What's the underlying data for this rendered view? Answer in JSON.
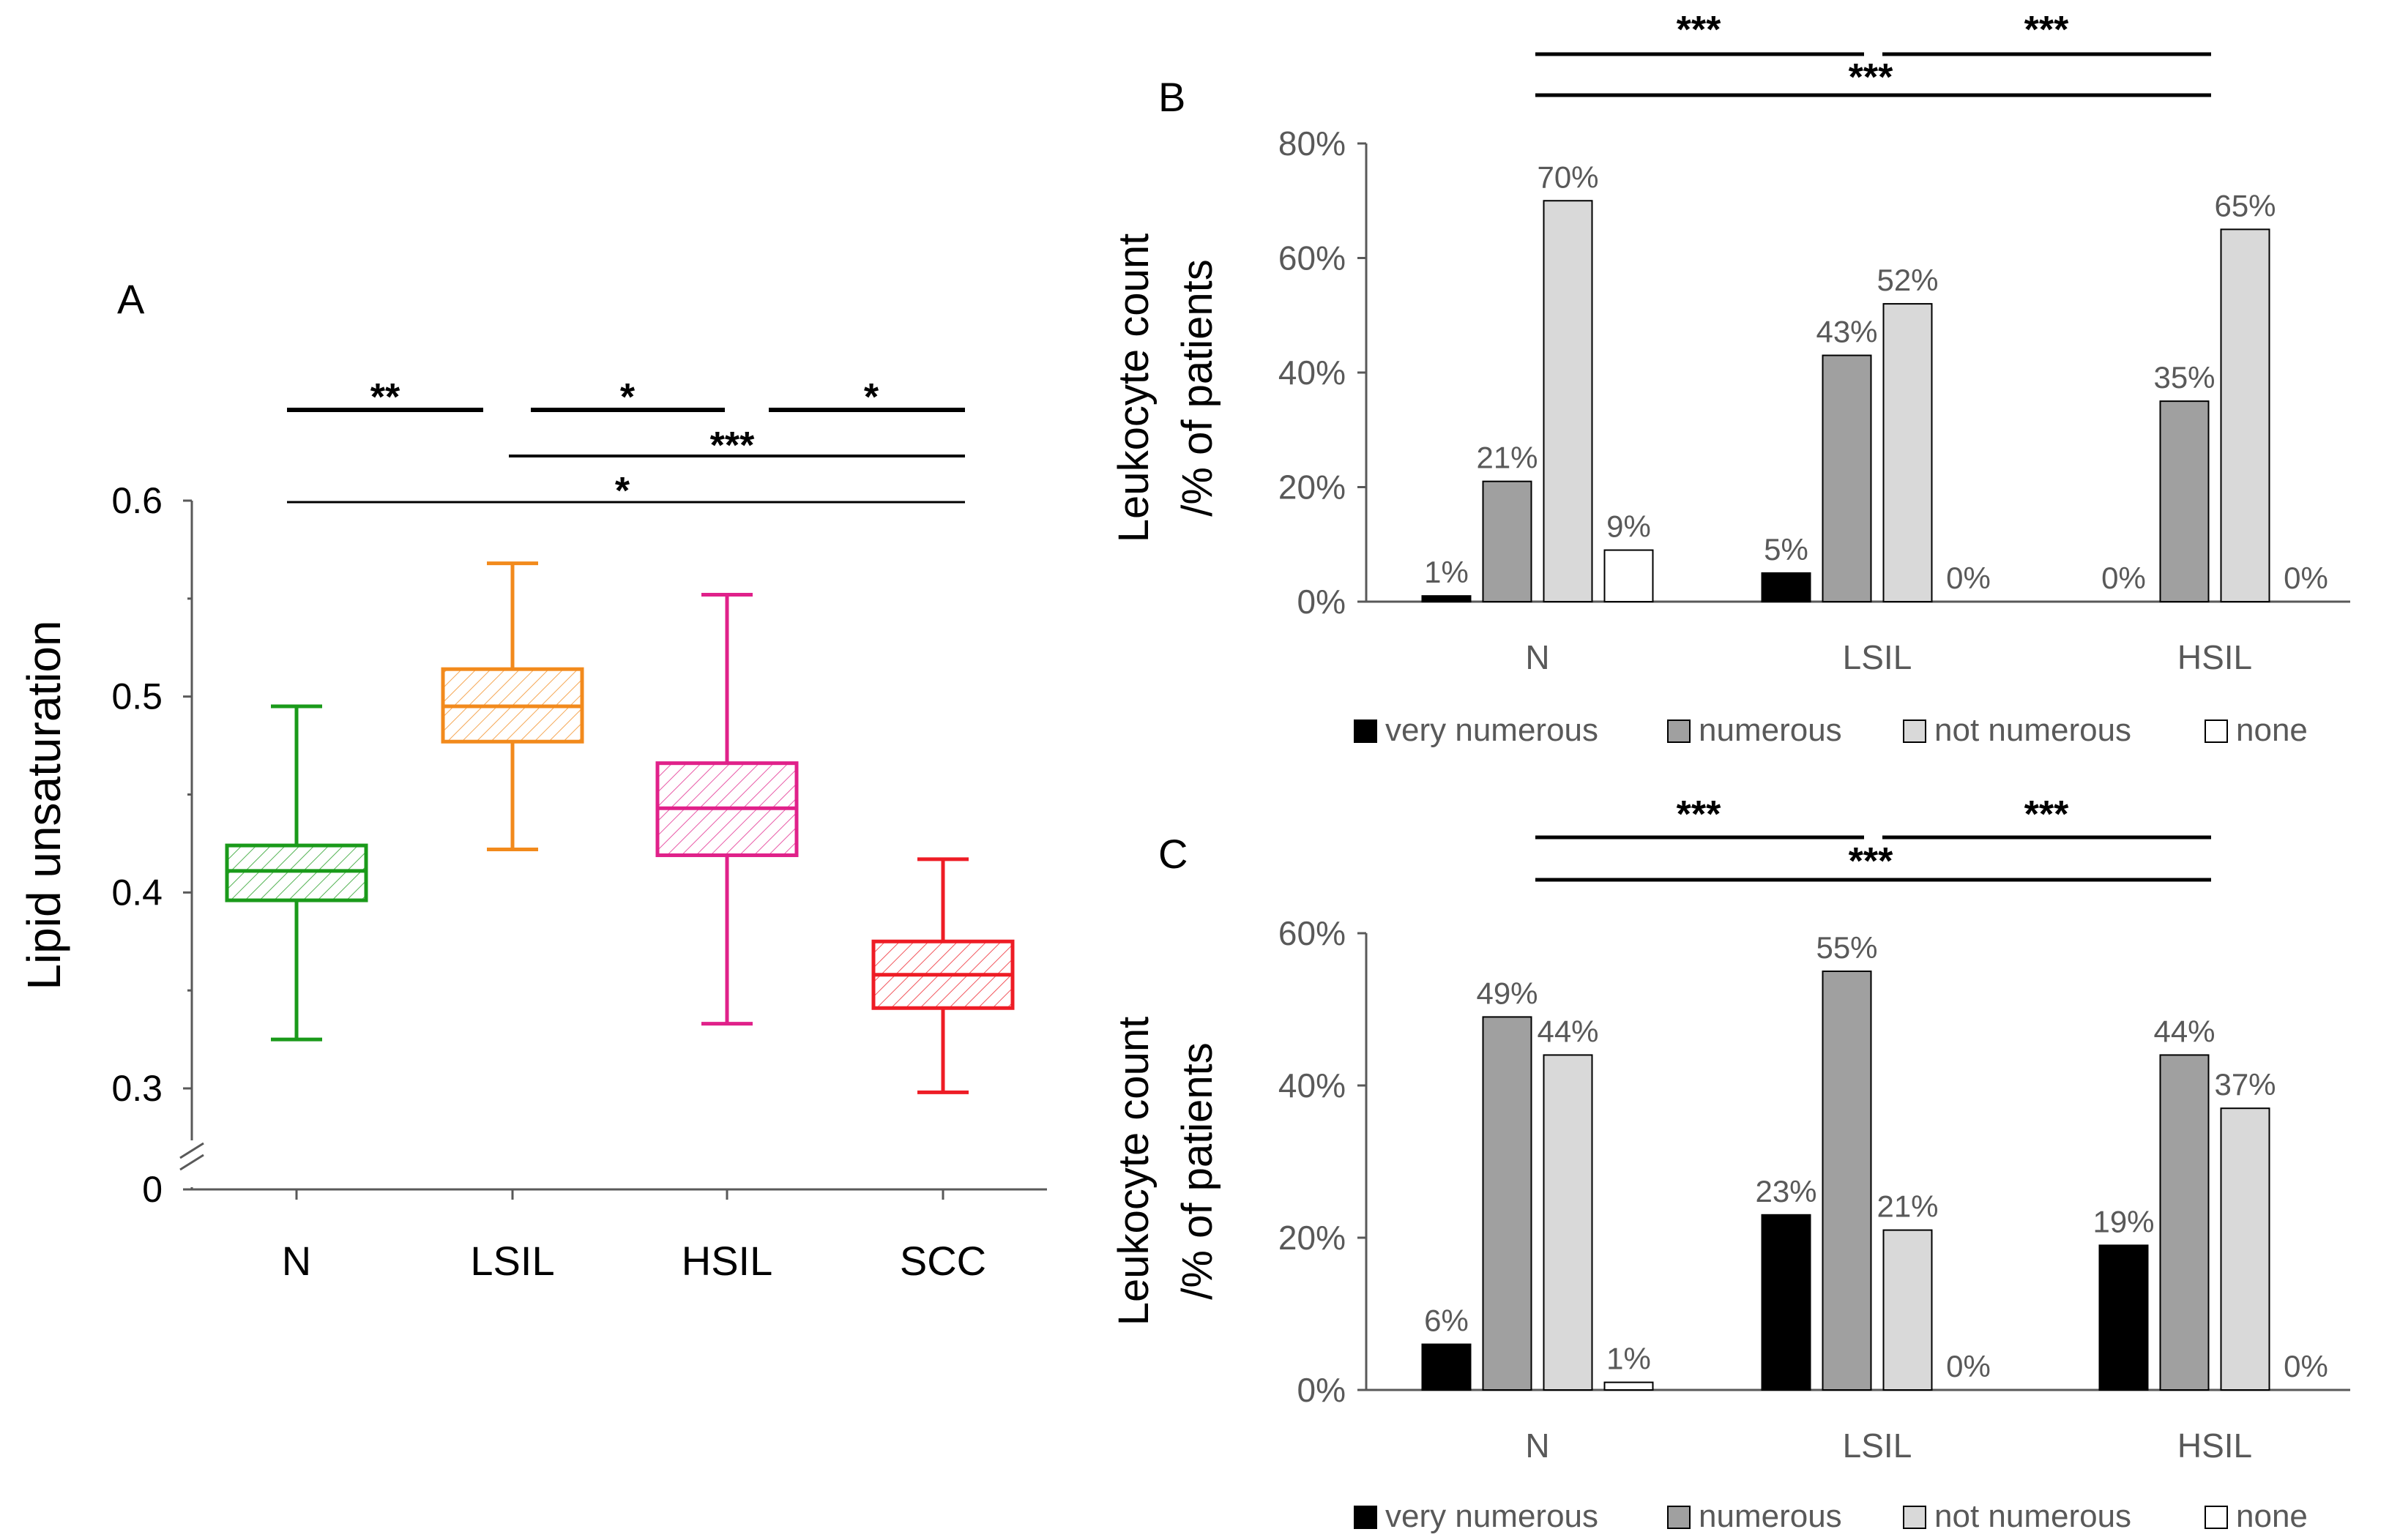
{
  "chart_data": [
    {
      "panel": "A",
      "type": "box",
      "ylabel": "Lipid unsaturation",
      "ytick_labels": [
        "0",
        "0.3",
        "0.4",
        "0.5",
        "0.6"
      ],
      "ylim": [
        0.29,
        0.6
      ],
      "axis_break": true,
      "categories": [
        "N",
        "LSIL",
        "HSIL",
        "SCC"
      ],
      "colors": [
        "#1a9a1a",
        "#f28a1c",
        "#e0218a",
        "#ee1c25"
      ],
      "boxes": [
        {
          "name": "N",
          "min": 0.325,
          "q1": 0.396,
          "median": 0.411,
          "q3": 0.424,
          "max": 0.495
        },
        {
          "name": "LSIL",
          "min": 0.422,
          "q1": 0.477,
          "median": 0.495,
          "q3": 0.514,
          "max": 0.568
        },
        {
          "name": "HSIL",
          "min": 0.333,
          "q1": 0.419,
          "median": 0.443,
          "q3": 0.466,
          "max": 0.552
        },
        {
          "name": "SCC",
          "min": 0.298,
          "q1": 0.341,
          "median": 0.358,
          "q3": 0.375,
          "max": 0.417
        }
      ],
      "significance": [
        {
          "from": "N",
          "to": "LSIL",
          "label": "**"
        },
        {
          "from": "LSIL",
          "to": "HSIL",
          "label": "*"
        },
        {
          "from": "HSIL",
          "to": "SCC",
          "label": "*"
        },
        {
          "from": "LSIL",
          "to": "SCC",
          "label": "***"
        },
        {
          "from": "N",
          "to": "SCC",
          "label": "*"
        }
      ]
    },
    {
      "panel": "B",
      "type": "bar",
      "ylabel_line1": "Leukocyte count",
      "ylabel_line2": "/% of patients",
      "ytick_labels": [
        "0%",
        "20%",
        "40%",
        "60%",
        "80%"
      ],
      "ylim": [
        0,
        80
      ],
      "categories": [
        "N",
        "LSIL",
        "HSIL"
      ],
      "series": [
        {
          "name": "very numerous",
          "color": "#000000",
          "values": [
            1,
            5,
            0
          ],
          "labels": [
            "1%",
            "5%",
            "0%"
          ]
        },
        {
          "name": "numerous",
          "color": "#a0a0a0",
          "values": [
            21,
            43,
            35
          ],
          "labels": [
            "21%",
            "43%",
            "35%"
          ]
        },
        {
          "name": "not numerous",
          "color": "#d9d9d9",
          "values": [
            70,
            52,
            65
          ],
          "labels": [
            "70%",
            "52%",
            "65%"
          ]
        },
        {
          "name": "none",
          "color": "#ffffff",
          "values": [
            9,
            0,
            0
          ],
          "labels": [
            "9%",
            "0%",
            "0%"
          ]
        }
      ],
      "significance": [
        {
          "from": "N",
          "to": "LSIL",
          "label": "***"
        },
        {
          "from": "LSIL",
          "to": "HSIL",
          "label": "***"
        },
        {
          "from": "N",
          "to": "HSIL",
          "label": "***"
        }
      ]
    },
    {
      "panel": "C",
      "type": "bar",
      "ylabel_line1": "Leukocyte count",
      "ylabel_line2": "/% of patients",
      "ytick_labels": [
        "0%",
        "20%",
        "40%",
        "60%"
      ],
      "ylim": [
        0,
        60
      ],
      "categories": [
        "N",
        "LSIL",
        "HSIL"
      ],
      "series": [
        {
          "name": "very numerous",
          "color": "#000000",
          "values": [
            6,
            23,
            19
          ],
          "labels": [
            "6%",
            "23%",
            "19%"
          ]
        },
        {
          "name": "numerous",
          "color": "#a0a0a0",
          "values": [
            49,
            55,
            44
          ],
          "labels": [
            "49%",
            "55%",
            "44%"
          ]
        },
        {
          "name": "not numerous",
          "color": "#d9d9d9",
          "values": [
            44,
            21,
            37
          ],
          "labels": [
            "44%",
            "21%",
            "37%"
          ]
        },
        {
          "name": "none",
          "color": "#ffffff",
          "values": [
            1,
            0,
            0
          ],
          "labels": [
            "1%",
            "0%",
            "0%"
          ]
        }
      ],
      "significance": [
        {
          "from": "N",
          "to": "LSIL",
          "label": "***"
        },
        {
          "from": "LSIL",
          "to": "HSIL",
          "label": "***"
        },
        {
          "from": "N",
          "to": "HSIL",
          "label": "***"
        }
      ]
    }
  ]
}
